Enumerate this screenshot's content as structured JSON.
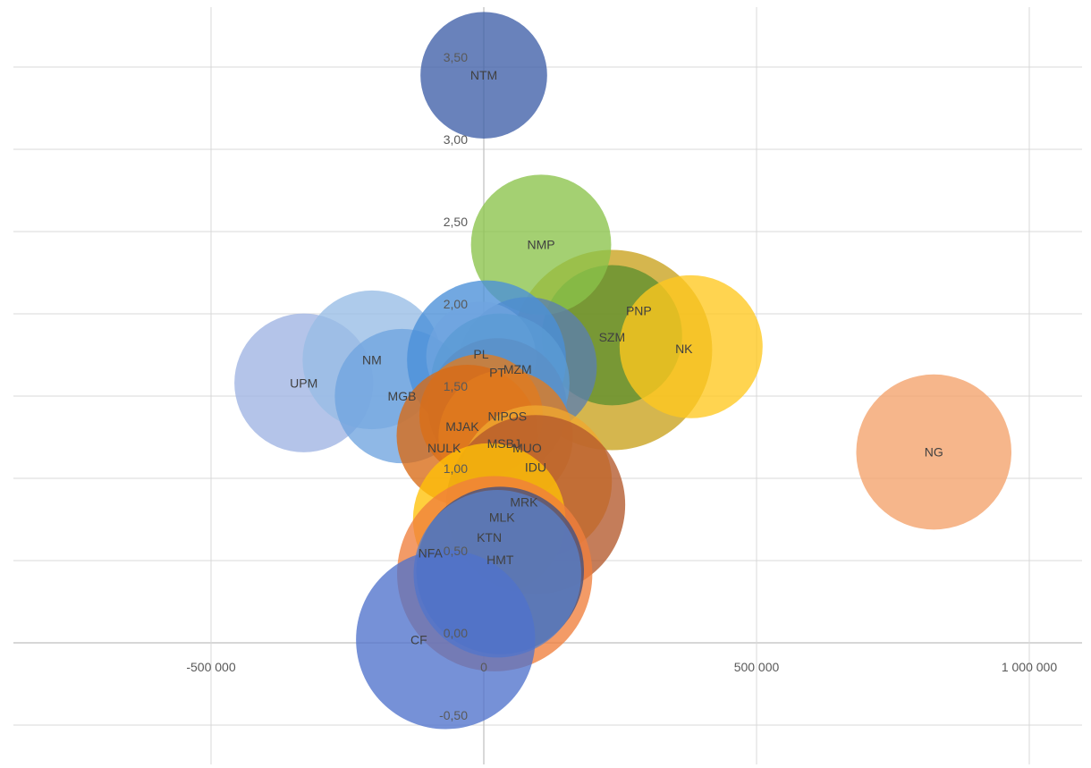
{
  "chart_data": {
    "type": "bubble",
    "title": "",
    "xlabel": "",
    "ylabel": "",
    "xlim": [
      -880000,
      1100000
    ],
    "ylim": [
      -0.75,
      3.75
    ],
    "x_ticks": [
      -500000,
      0,
      500000,
      1000000
    ],
    "x_tick_labels": [
      "-500 000",
      "0",
      "500 000",
      "1 000 000"
    ],
    "y_ticks": [
      -0.5,
      0,
      0.5,
      1,
      1.5,
      2,
      2.5,
      3,
      3.5
    ],
    "y_tick_labels": [
      "-0,50",
      "0,00",
      "0,50",
      "1,00",
      "1,50",
      "2,00",
      "2,50",
      "3,00",
      "3,50"
    ],
    "grid": true,
    "legend": "none",
    "series": [
      {
        "name": "PNP",
        "x": 235000,
        "y": 1.78,
        "size": 100,
        "color": "#C9A21C"
      },
      {
        "name": "SZM",
        "x": 235000,
        "y": 1.87,
        "size": 49,
        "color": "#5E8F2E"
      },
      {
        "name": "NK",
        "x": 380000,
        "y": 1.8,
        "size": 51,
        "color": "#FFC81F"
      },
      {
        "name": "NMP",
        "x": 105000,
        "y": 2.42,
        "size": 49,
        "color": "#8BC34A"
      },
      {
        "name": "NTM",
        "x": 0,
        "y": 3.45,
        "size": 40,
        "color": "#3F5FA8"
      },
      {
        "name": "NG",
        "x": 825000,
        "y": 1.16,
        "size": 60,
        "color": "#F4A26A"
      },
      {
        "name": "UPM",
        "x": -330000,
        "y": 1.58,
        "size": 48,
        "color": "#9FB3E3"
      },
      {
        "name": "NM",
        "x": -205000,
        "y": 1.72,
        "size": 48,
        "color": "#97BDE6"
      },
      {
        "name": "MGB",
        "x": -150000,
        "y": 1.5,
        "size": 45,
        "color": "#6FA4DF"
      },
      {
        "name": "MZM",
        "x": 80000,
        "y": 1.68,
        "size": 48,
        "color": "#5B7FB0"
      },
      {
        "name": "PT",
        "x": 5000,
        "y": 1.72,
        "size": 63,
        "color": "#4A90D9"
      },
      {
        "name": "PL",
        "x": -5000,
        "y": 1.74,
        "size": 30,
        "color": "#6FA4DF"
      },
      {
        "name": "NIPOS",
        "x": 30000,
        "y": 1.58,
        "size": 48,
        "color": "#5B9BD5"
      },
      {
        "name": "MSBJ",
        "x": 25000,
        "y": 1.43,
        "size": 48,
        "color": "#5B8FC7"
      },
      {
        "name": "MJAK",
        "x": -5000,
        "y": 1.38,
        "size": 38,
        "color": "#E07B1F"
      },
      {
        "name": "NULK",
        "x": -30000,
        "y": 1.26,
        "size": 50,
        "color": "#D86A14"
      },
      {
        "name": "MUO",
        "x": 40000,
        "y": 1.25,
        "size": 45,
        "color": "#E07B1F"
      },
      {
        "name": "IDU",
        "x": 95000,
        "y": 0.98,
        "size": 58,
        "color": "#F0A830"
      },
      {
        "name": "MRK",
        "x": 95000,
        "y": 0.84,
        "size": 80,
        "color": "#B4582B"
      },
      {
        "name": "KTN",
        "x": 10000,
        "y": 0.75,
        "size": 58,
        "color": "#FFC107"
      },
      {
        "name": "NFA",
        "x": 20000,
        "y": 0.42,
        "size": 95,
        "color": "#F07F3C"
      },
      {
        "name": "HMT",
        "x": 30000,
        "y": 0.44,
        "size": 70,
        "color": "#3F4F82"
      },
      {
        "name": "MLK",
        "x": 25000,
        "y": 0.42,
        "size": 70,
        "color": "#5A7FC7"
      },
      {
        "name": "CF",
        "x": -70000,
        "y": 0.02,
        "size": 80,
        "color": "#4F72CC"
      }
    ]
  }
}
